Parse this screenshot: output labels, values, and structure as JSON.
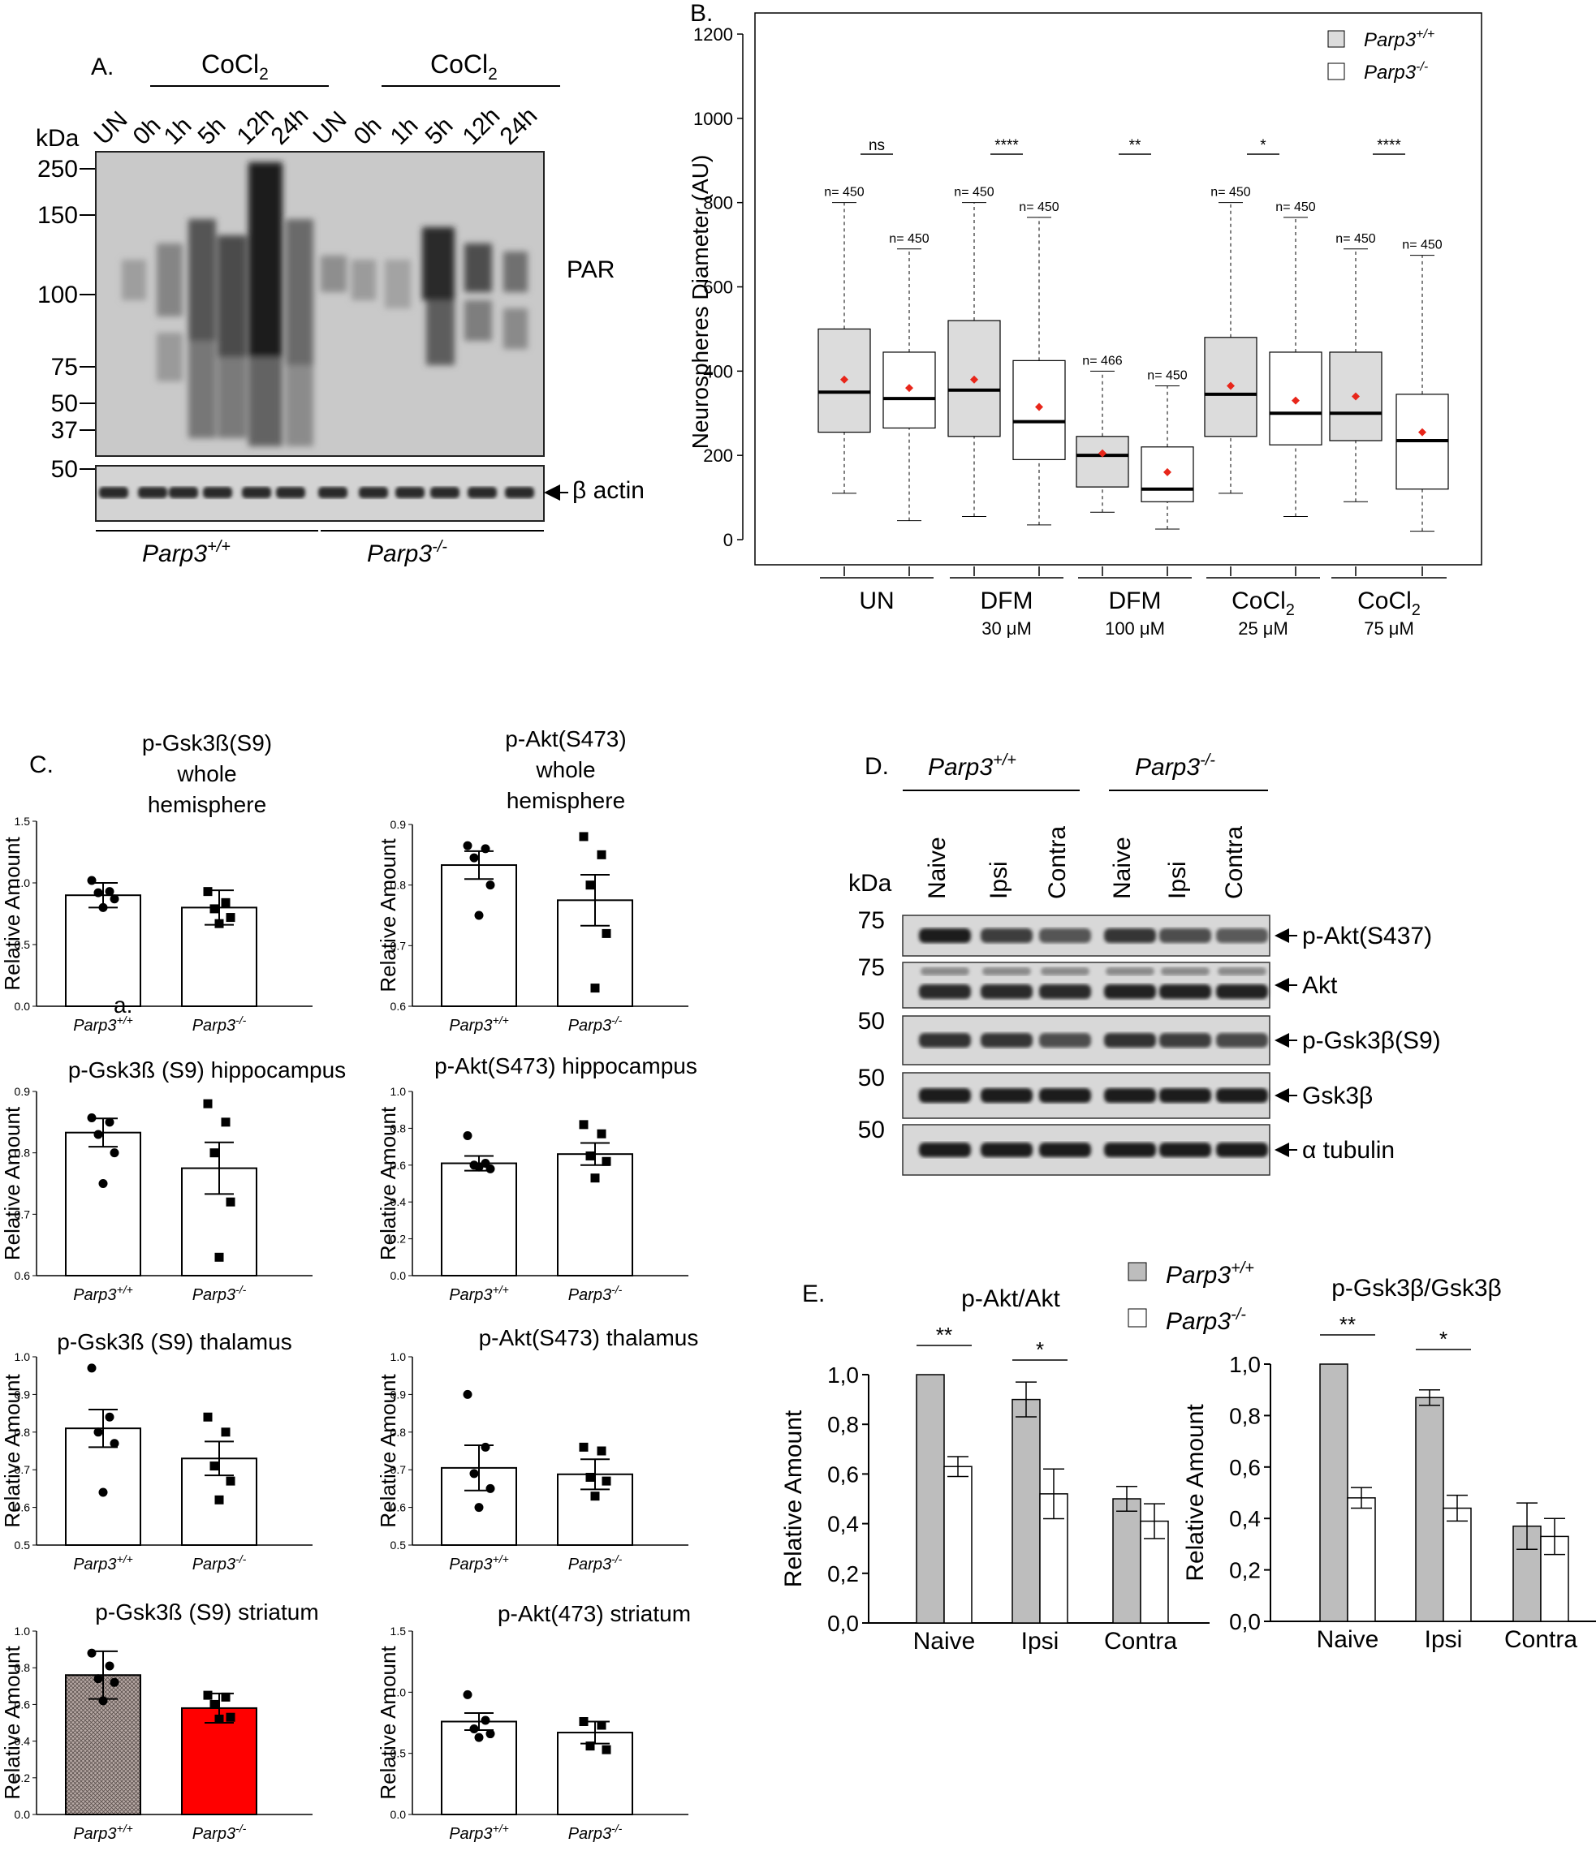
{
  "panel_a": {
    "label": "A.",
    "kda": "kDa",
    "treat_1": "CoCl",
    "treat_2": "CoCl",
    "treat_sub": "2",
    "lanes": [
      "UN",
      "0h",
      "1h",
      "5h",
      "12h",
      "24h",
      "UN",
      "0h",
      "1h",
      "5h",
      "12h",
      "24h"
    ],
    "markers": [
      "250",
      "150",
      "100",
      "75",
      "50",
      "37"
    ],
    "actin_marker": "50",
    "par_label": "PAR",
    "actin_label": "β actin",
    "geno_wt": "Parp3",
    "geno_wt_sup": "+/+",
    "geno_ko": "Parp3",
    "geno_ko_sup": "-/-"
  },
  "panel_b": {
    "label": "B.",
    "legend": [
      {
        "name": "Parp3",
        "sup": "+/+",
        "fill": "#dcdcdc"
      },
      {
        "name": "Parp3",
        "sup": "-/-",
        "fill": "#ffffff"
      }
    ],
    "groups": [
      {
        "name": "UN",
        "sub": ""
      },
      {
        "name": "DFM",
        "sub": "30 μM"
      },
      {
        "name": "DFM",
        "sub": "100 μM"
      },
      {
        "name": "CoCl",
        "sub": "25 μM"
      },
      {
        "name": "CoCl",
        "sub": "75 μM"
      }
    ],
    "cocl_sub": "2",
    "significance": [
      "ns",
      "****",
      "**",
      "*",
      "****"
    ],
    "n_labels": [
      "n= 450",
      "n= 450",
      "n= 450",
      "n= 450",
      "n= 466",
      "n= 450",
      "n= 450",
      "n= 450",
      "n= 450",
      "n= 450"
    ]
  },
  "panel_c": {
    "label": "C.",
    "sublabel": "a.",
    "ylabel": "Relative Amount",
    "xcat_wt": "Parp3",
    "xcat_wt_sup": "+/+",
    "xcat_ko": "Parp3",
    "xcat_ko_sup": "-/-",
    "titles": {
      "gsk_whole": [
        "p-Gsk3ß(S9)",
        "whole",
        "hemisphere"
      ],
      "akt_whole": [
        "p-Akt(S473)",
        "whole",
        "hemisphere"
      ],
      "gsk_hippo": "p-Gsk3ß (S9) hippocampus",
      "akt_hippo": "p-Akt(S473) hippocampus",
      "gsk_thal": "p-Gsk3ß (S9) thalamus",
      "akt_thal": "p-Akt(S473) thalamus",
      "gsk_stri": "p-Gsk3ß (S9) striatum",
      "akt_stri": "p-Akt(473) striatum"
    }
  },
  "panel_d": {
    "label": "D.",
    "kda": "kDa",
    "geno_wt": "Parp3",
    "geno_wt_sup": "+/+",
    "geno_ko": "Parp3",
    "geno_ko_sup": "-/-",
    "lanes": [
      "Naive",
      "Ipsi",
      "Contra",
      "Naive",
      "Ipsi",
      "Contra"
    ],
    "bands": [
      {
        "label": "p-Akt(S437)",
        "marker": "75"
      },
      {
        "label": "Akt",
        "marker": "75"
      },
      {
        "label": "p-Gsk3β(S9)",
        "marker": "50"
      },
      {
        "label": "Gsk3β",
        "marker": "50"
      },
      {
        "label": "α tubulin",
        "marker": "50"
      }
    ]
  },
  "panel_e": {
    "label": "E.",
    "legend_wt": "Parp3",
    "legend_wt_sup": "+/+",
    "legend_ko": "Parp3",
    "legend_ko_sup": "-/-",
    "ylabel": "Relative Amount",
    "categories": [
      "Naive",
      "Ipsi",
      "Contra"
    ],
    "titles": [
      "p-Akt/Akt",
      "p-Gsk3β/Gsk3β"
    ],
    "yticks": [
      "0,0",
      "0,2",
      "0,4",
      "0,6",
      "0,8",
      "1,0"
    ],
    "sig": [
      [
        "**",
        "*"
      ],
      [
        "**",
        "*"
      ]
    ]
  },
  "chart_data": [
    {
      "type": "box",
      "panel": "B",
      "title": "",
      "ylabel": "Neurospheres Diameter (AU)",
      "ylim": [
        0,
        1200
      ],
      "yticks": [
        0,
        200,
        400,
        600,
        800,
        1000,
        1200
      ],
      "categories": [
        "UN",
        "DFM 30 μM",
        "DFM 100 μM",
        "CoCl2 25 μM",
        "CoCl2 75 μM"
      ],
      "series": [
        {
          "name": "Parp3+/+",
          "n": [
            450,
            450,
            466,
            450,
            450
          ],
          "whisker_low": [
            110,
            55,
            65,
            110,
            90
          ],
          "q1": [
            255,
            245,
            125,
            245,
            235
          ],
          "median": [
            350,
            355,
            200,
            345,
            300
          ],
          "q3": [
            500,
            520,
            245,
            480,
            445
          ],
          "whisker_high": [
            800,
            800,
            400,
            800,
            690
          ],
          "mean": [
            380,
            380,
            205,
            365,
            340
          ]
        },
        {
          "name": "Parp3-/-",
          "n": [
            450,
            450,
            450,
            450,
            450
          ],
          "whisker_low": [
            45,
            35,
            25,
            55,
            20
          ],
          "q1": [
            265,
            190,
            90,
            225,
            120
          ],
          "median": [
            335,
            280,
            120,
            300,
            235
          ],
          "q3": [
            445,
            425,
            220,
            445,
            345
          ],
          "whisker_high": [
            690,
            765,
            365,
            765,
            675
          ],
          "mean": [
            360,
            315,
            160,
            330,
            255
          ]
        }
      ]
    },
    {
      "type": "bar",
      "panel": "C",
      "title": "p-Gsk3ß(S9) whole hemisphere",
      "categories": [
        "Parp3+/+",
        "Parp3-/-"
      ],
      "values": [
        0.9,
        0.8
      ],
      "errors": [
        0.1,
        0.14
      ],
      "points": [
        [
          1.02,
          0.93,
          0.92,
          0.87,
          0.8
        ],
        [
          0.93,
          0.84,
          0.79,
          0.72,
          0.67
        ]
      ],
      "ylim": [
        0,
        1.5
      ],
      "yticks": [
        0.0,
        0.5,
        1.0,
        1.5
      ]
    },
    {
      "type": "bar",
      "panel": "C",
      "title": "p-Akt(S473) whole hemisphere",
      "categories": [
        "Parp3+/+",
        "Parp3-/-"
      ],
      "values": [
        0.833,
        0.775
      ],
      "errors": [
        0.023,
        0.042
      ],
      "points": [
        [
          0.865,
          0.86,
          0.845,
          0.8,
          0.75
        ],
        [
          0.88,
          0.85,
          0.8,
          0.72,
          0.63
        ]
      ],
      "ylim": [
        0.6,
        0.9
      ],
      "yticks": [
        0.6,
        0.7,
        0.8,
        0.9
      ]
    },
    {
      "type": "bar",
      "panel": "C",
      "title": "p-Gsk3ß (S9) hippocampus",
      "categories": [
        "Parp3+/+",
        "Parp3-/-"
      ],
      "values": [
        0.833,
        0.775
      ],
      "errors": [
        0.023,
        0.042
      ],
      "points": [
        [
          0.857,
          0.85,
          0.83,
          0.8,
          0.75
        ],
        [
          0.88,
          0.85,
          0.8,
          0.72,
          0.63
        ]
      ],
      "ylim": [
        0.6,
        0.9
      ],
      "yticks": [
        0.6,
        0.7,
        0.8,
        0.9
      ]
    },
    {
      "type": "bar",
      "panel": "C",
      "title": "p-Akt(S473) hippocampus",
      "categories": [
        "Parp3+/+",
        "Parp3-/-"
      ],
      "values": [
        0.61,
        0.66
      ],
      "errors": [
        0.04,
        0.06
      ],
      "points": [
        [
          0.76,
          0.61,
          0.6,
          0.58,
          0.59
        ],
        [
          0.82,
          0.77,
          0.65,
          0.62,
          0.53
        ]
      ],
      "ylim": [
        0,
        1.0
      ],
      "yticks": [
        0.0,
        0.2,
        0.4,
        0.6,
        0.8,
        1.0
      ]
    },
    {
      "type": "bar",
      "panel": "C",
      "title": "p-Gsk3ß (S9) thalamus",
      "categories": [
        "Parp3+/+",
        "Parp3-/-"
      ],
      "values": [
        0.81,
        0.73
      ],
      "errors": [
        0.05,
        0.045
      ],
      "points": [
        [
          0.97,
          0.84,
          0.8,
          0.77,
          0.64
        ],
        [
          0.84,
          0.8,
          0.71,
          0.67,
          0.62
        ]
      ],
      "ylim": [
        0.5,
        1.0
      ],
      "yticks": [
        0.5,
        0.6,
        0.7,
        0.8,
        0.9,
        1.0
      ]
    },
    {
      "type": "bar",
      "panel": "C",
      "title": "p-Akt(S473) thalamus",
      "categories": [
        "Parp3+/+",
        "Parp3-/-"
      ],
      "values": [
        0.705,
        0.688
      ],
      "errors": [
        0.06,
        0.04
      ],
      "points": [
        [
          0.9,
          0.76,
          0.69,
          0.65,
          0.6
        ],
        [
          0.76,
          0.75,
          0.68,
          0.67,
          0.63
        ]
      ],
      "ylim": [
        0.5,
        1.0
      ],
      "yticks": [
        0.5,
        0.6,
        0.7,
        0.8,
        0.9,
        1.0
      ]
    },
    {
      "type": "bar",
      "panel": "C",
      "title": "p-Gsk3ß (S9) striatum",
      "categories": [
        "Parp3+/+",
        "Parp3-/-"
      ],
      "values": [
        0.76,
        0.58
      ],
      "errors": [
        0.13,
        0.08
      ],
      "points": [
        [
          0.88,
          0.81,
          0.74,
          0.72,
          0.62
        ],
        [
          0.65,
          0.64,
          0.6,
          0.53,
          0.52
        ]
      ],
      "ylim": [
        0,
        1.0
      ],
      "yticks": [
        0.0,
        0.2,
        0.4,
        0.6,
        0.8,
        1.0
      ],
      "colors": [
        "#a89a97",
        "#ff0000"
      ]
    },
    {
      "type": "bar",
      "panel": "C",
      "title": "p-Akt(473) striatum",
      "categories": [
        "Parp3+/+",
        "Parp3-/-"
      ],
      "values": [
        0.76,
        0.67
      ],
      "errors": [
        0.07,
        0.09
      ],
      "points": [
        [
          0.98,
          0.77,
          0.7,
          0.66,
          0.63
        ],
        [
          0.76,
          0.73,
          0.56,
          0.53
        ]
      ],
      "ylim": [
        0,
        1.5
      ],
      "yticks": [
        0.0,
        0.5,
        1.0,
        1.5
      ]
    },
    {
      "type": "bar",
      "panel": "E",
      "title": "p-Akt/Akt",
      "categories": [
        "Naive",
        "Ipsi",
        "Contra"
      ],
      "series": [
        {
          "name": "Parp3+/+",
          "values": [
            1.0,
            0.9,
            0.5
          ],
          "errors": [
            0,
            0.07,
            0.05
          ]
        },
        {
          "name": "Parp3-/-",
          "values": [
            0.63,
            0.52,
            0.41
          ],
          "errors": [
            0.04,
            0.1,
            0.07
          ]
        }
      ],
      "ylim": [
        0,
        1.0
      ]
    },
    {
      "type": "bar",
      "panel": "E",
      "title": "p-Gsk3β/Gsk3β",
      "categories": [
        "Naive",
        "Ipsi",
        "Contra"
      ],
      "series": [
        {
          "name": "Parp3+/+",
          "values": [
            1.0,
            0.87,
            0.37
          ],
          "errors": [
            0,
            0.03,
            0.09
          ]
        },
        {
          "name": "Parp3-/-",
          "values": [
            0.48,
            0.44,
            0.33
          ],
          "errors": [
            0.04,
            0.05,
            0.07
          ]
        }
      ],
      "ylim": [
        0,
        1.0
      ]
    }
  ]
}
